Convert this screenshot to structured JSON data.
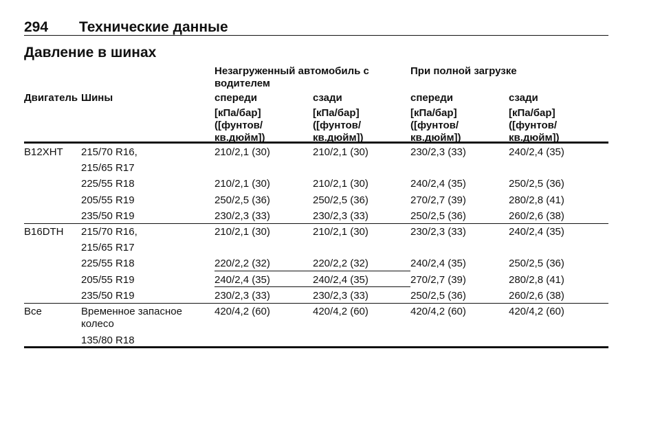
{
  "header": {
    "page_number": "294",
    "section": "Технические данные"
  },
  "title": "Давление в шинах",
  "table": {
    "group_headers": [
      "Незагруженный автомобиль с водителем",
      "При полной загрузке"
    ],
    "columns": [
      "Двигатель",
      "Шины",
      "спереди",
      "сзади",
      "спереди",
      "сзади"
    ],
    "units": [
      "[кПа/бар] ([фунтов/ кв.дюйм])",
      "[кПа/бар] ([фунтов/ кв.дюйм])",
      "[кПа/бар] ([фунтов/ кв.дюйм])",
      "[кПа/бар] ([фунтов/ кв.дюйм])"
    ],
    "groups": [
      {
        "engine": "B12XHT",
        "rows": [
          {
            "tyres": "215/70 R16,",
            "values": [
              "210/2,1 (30)",
              "210/2,1 (30)",
              "230/2,3 (33)",
              "240/2,4 (35)"
            ]
          },
          {
            "tyres": "215/65 R17"
          },
          {
            "tyres": "225/55 R18",
            "values": [
              "210/2,1 (30)",
              "210/2,1 (30)",
              "240/2,4 (35)",
              "250/2,5 (36)"
            ]
          },
          {
            "tyres": "205/55 R19",
            "values": [
              "250/2,5 (36)",
              "250/2,5 (36)",
              "270/2,7 (39)",
              "280/2,8 (41)"
            ]
          },
          {
            "tyres": "235/50 R19",
            "values": [
              "230/2,3 (33)",
              "230/2,3 (33)",
              "250/2,5 (36)",
              "260/2,6 (38)"
            ]
          }
        ]
      },
      {
        "engine": "B16DTH",
        "rows": [
          {
            "tyres": "215/70 R16,",
            "values": [
              "210/2,1 (30)",
              "210/2,1 (30)",
              "230/2,3 (33)",
              "240/2,4 (35)"
            ]
          },
          {
            "tyres": "215/65 R17"
          },
          {
            "tyres": "225/55 R18",
            "values": [
              "220/2,2 (32)",
              "220/2,2 (32)",
              "240/2,4 (35)",
              "250/2,5 (36)"
            ]
          },
          {
            "tyres": "205/55 R19",
            "values": [
              "240/2,4 (35)",
              "240/2,4 (35)",
              "270/2,7 (39)",
              "280/2,8 (41)"
            ]
          },
          {
            "tyres": "235/50 R19",
            "values": [
              "230/2,3 (33)",
              "230/2,3 (33)",
              "250/2,5 (36)",
              "260/2,6 (38)"
            ]
          }
        ]
      },
      {
        "engine": "Все",
        "rows": [
          {
            "tyres": "Временное запасное колесо",
            "values": [
              "420/4,2 (60)",
              "420/4,2 (60)",
              "420/4,2 (60)",
              "420/4,2 (60)"
            ]
          },
          {
            "tyres": "135/80 R18"
          }
        ]
      }
    ]
  }
}
